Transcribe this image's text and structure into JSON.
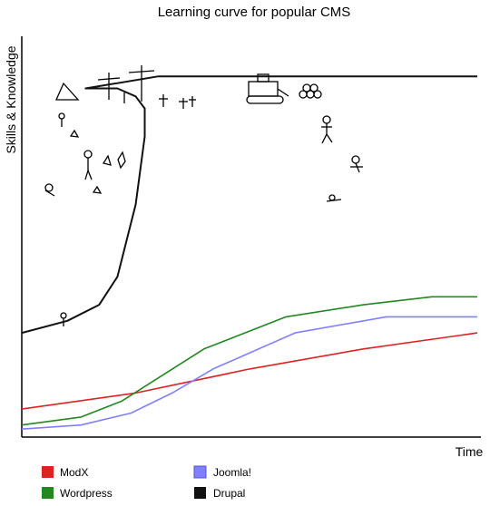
{
  "chart_data": {
    "type": "line",
    "title": "Learning curve for popular CMS",
    "xlabel": "Time",
    "ylabel": "Skills & Knowledge",
    "xlim": [
      0,
      100
    ],
    "ylim": [
      0,
      100
    ],
    "grid": false,
    "legend_position": "bottom",
    "series": [
      {
        "name": "ModX",
        "color": "#dd2222",
        "x": [
          0,
          25,
          50,
          75,
          100
        ],
        "y": [
          7,
          11,
          17,
          22,
          26
        ]
      },
      {
        "name": "Wordpress",
        "color": "#228822",
        "x": [
          0,
          13,
          22,
          40,
          58,
          75,
          90,
          100
        ],
        "y": [
          3,
          5,
          9,
          22,
          30,
          33,
          35,
          35
        ]
      },
      {
        "name": "Joomla!",
        "color": "#8080ff",
        "x": [
          0,
          13,
          24,
          33,
          42,
          60,
          80,
          90,
          100
        ],
        "y": [
          2,
          3,
          6,
          11,
          17,
          26,
          30,
          30,
          30
        ]
      },
      {
        "name": "Drupal",
        "color": "#111111",
        "x": [
          0,
          10,
          17,
          21,
          25,
          27,
          27,
          25,
          21,
          14,
          30,
          55,
          75,
          100
        ],
        "y": [
          26,
          29,
          33,
          40,
          58,
          75,
          82,
          85,
          87,
          87,
          90,
          90,
          90,
          90
        ]
      }
    ]
  }
}
